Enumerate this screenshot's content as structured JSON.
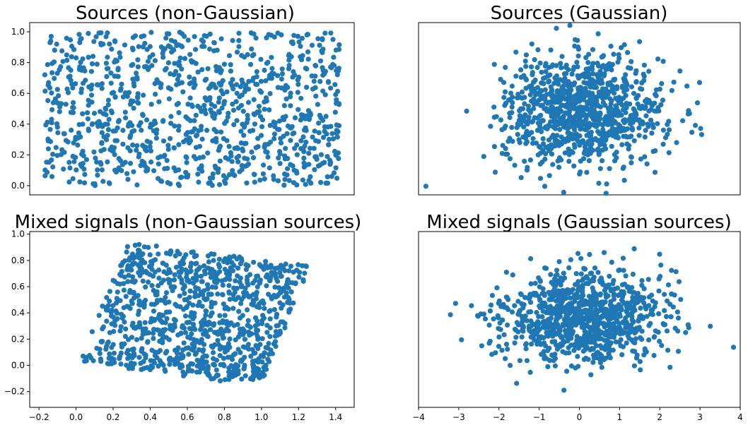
{
  "chart_data": [
    {
      "type": "scatter",
      "title": "Sources (non-Gaussian)",
      "distribution": "uniform",
      "xlim": [
        -0.05,
        1.05
      ],
      "ylim": [
        -0.06,
        1.06
      ],
      "show_xticks": false,
      "show_yticks": true,
      "xticks": [],
      "yticks": [
        "0.0",
        "0.2",
        "0.4",
        "0.6",
        "0.8",
        "1.0"
      ],
      "yticks_values": [
        0.0,
        0.2,
        0.4,
        0.6,
        0.8,
        1.0
      ],
      "color": "#1f77b4",
      "n_points": 1000
    },
    {
      "type": "scatter",
      "title": "Sources (Gaussian)",
      "distribution": "gaussian",
      "xlim": [
        -4,
        4
      ],
      "ylim": [
        -0.03,
        1.05
      ],
      "mean": [
        0.1,
        0.5
      ],
      "std": [
        1.0,
        0.17
      ],
      "show_xticks": false,
      "show_yticks": false,
      "xticks": [],
      "yticks": [],
      "color": "#1f77b4",
      "n_points": 1000
    },
    {
      "type": "scatter",
      "title": "Mixed signals (non-Gaussian sources)",
      "distribution": "mixed-uniform",
      "xlim": [
        -0.25,
        1.5
      ],
      "ylim": [
        -0.32,
        1.02
      ],
      "show_xticks": true,
      "show_yticks": true,
      "xticks": [
        "−0.2",
        "0.0",
        "0.2",
        "0.4",
        "0.6",
        "0.8",
        "1.0",
        "1.2",
        "1.4"
      ],
      "xticks_values": [
        -0.2,
        0.0,
        0.2,
        0.4,
        0.6,
        0.8,
        1.0,
        1.2,
        1.4
      ],
      "yticks": [
        "−0.2",
        "0.0",
        "0.2",
        "0.4",
        "0.6",
        "0.8",
        "1.0"
      ],
      "yticks_values": [
        -0.2,
        0.0,
        0.2,
        0.4,
        0.6,
        0.8,
        1.0
      ],
      "color": "#1f77b4",
      "n_points": 1000
    },
    {
      "type": "scatter",
      "title": "Mixed signals (Gaussian sources)",
      "distribution": "gaussian",
      "xlim": [
        -4,
        4
      ],
      "ylim": [
        -0.3,
        1.02
      ],
      "mean": [
        0.1,
        0.38
      ],
      "std": [
        1.0,
        0.17
      ],
      "show_xticks": true,
      "show_yticks": false,
      "xticks": [
        "−4",
        "−3",
        "−2",
        "−1",
        "0",
        "1",
        "2",
        "3",
        "4"
      ],
      "xticks_values": [
        -4,
        -3,
        -2,
        -1,
        0,
        1,
        2,
        3,
        4
      ],
      "yticks": [],
      "color": "#1f77b4",
      "n_points": 1000
    }
  ]
}
